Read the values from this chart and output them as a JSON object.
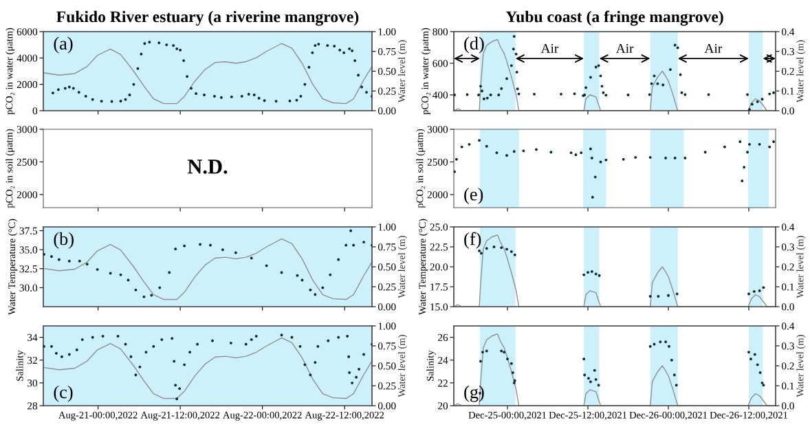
{
  "chart_data": [
    {
      "type": "scatter",
      "title": "Fukido River estuary (a riverine mangrove)",
      "ylabel": "pCO₂ in water (μatm)",
      "y2label": "Water level (m)",
      "annotations": [
        "(a)"
      ],
      "tick_labels": "y",
      "xlim": [
        "2022-08-20T16:00",
        "2022-08-22T16:00"
      ],
      "xticks": [
        {
          "value": "2022-08-21T00:00",
          "label": null
        },
        {
          "value": "2022-08-21T12:00",
          "label": null
        },
        {
          "value": "2022-08-22T00:00",
          "label": null
        },
        {
          "value": "2022-08-22T12:00",
          "label": null
        }
      ],
      "ylim": [
        0,
        6000
      ],
      "yticks": [
        0,
        2000,
        4000,
        6000
      ],
      "y2lim": [
        0,
        1
      ],
      "y2ticks": [
        {
          "value": 0,
          "label": "0.00"
        },
        0.25,
        {
          "value": 0.5,
          "label": "0.50"
        },
        0.75,
        {
          "value": 1,
          "label": "1.00"
        }
      ],
      "bands": [
        {
          "axis": "x",
          "from": "2022-08-20T16:00",
          "to": "2022-08-22T16:00",
          "color": "#ccf0fc"
        }
      ],
      "series": [
        {
          "type": "line",
          "axis": "y2",
          "color": "#8f8f8f",
          "x": [
            "2022-08-20T16:00",
            "2022-08-20T18:18",
            "2022-08-20T20:36",
            "2022-08-20T22:24",
            "2022-08-20T23:54",
            "2022-08-21T01:48",
            "2022-08-21T03:18",
            "2022-08-21T05:12",
            "2022-08-21T06:42",
            "2022-08-21T08:06",
            "2022-08-21T09:36",
            "2022-08-21T11:30",
            "2022-08-21T12:36",
            "2022-08-21T14:06",
            "2022-08-21T15:36",
            "2022-08-21T17:06",
            "2022-08-21T18:36",
            "2022-08-21T20:06",
            "2022-08-21T21:36",
            "2022-08-21T23:06",
            "2022-08-22T00:36",
            "2022-08-22T02:48",
            "2022-08-22T04:18",
            "2022-08-22T05:48",
            "2022-08-22T07:18",
            "2022-08-22T08:48",
            "2022-08-22T10:18",
            "2022-08-22T12:12",
            "2022-08-22T13:18",
            "2022-08-22T14:48",
            "2022-08-22T16:00"
          ],
          "values": [
            0.48,
            0.45,
            0.47,
            0.56,
            0.7,
            0.78,
            0.71,
            0.5,
            0.31,
            0.15,
            0.09,
            0.09,
            0.18,
            0.37,
            0.52,
            0.61,
            0.62,
            0.6,
            0.62,
            0.67,
            0.75,
            0.85,
            0.79,
            0.6,
            0.34,
            0.15,
            0.1,
            0.09,
            0.15,
            0.39,
            0.56
          ]
        },
        {
          "color": "#0d2b35",
          "marker": "circle",
          "x": [
            "2022-08-20T17:24",
            "2022-08-20T18:12",
            "2022-08-20T19:12",
            "2022-08-20T19:48",
            "2022-08-20T20:24",
            "2022-08-20T21:12",
            "2022-08-20T22:12",
            "2022-08-20T23:12",
            "2022-08-21T00:30",
            "2022-08-21T02:00",
            "2022-08-21T03:18",
            "2022-08-21T04:00",
            "2022-08-21T04:36",
            "2022-08-21T05:12",
            "2022-08-21T05:48",
            "2022-08-21T06:18",
            "2022-08-21T06:48",
            "2022-08-21T07:30",
            "2022-08-21T08:54",
            "2022-08-21T10:00",
            "2022-08-21T11:00",
            "2022-08-21T11:30",
            "2022-08-21T12:00",
            "2022-08-21T12:30",
            "2022-08-21T13:00",
            "2022-08-21T13:36",
            "2022-08-21T14:18",
            "2022-08-21T15:30",
            "2022-08-21T17:00",
            "2022-08-21T18:00",
            "2022-08-21T19:30",
            "2022-08-21T21:00",
            "2022-08-21T22:00",
            "2022-08-21T22:48",
            "2022-08-21T23:30",
            "2022-08-22T00:18",
            "2022-08-22T02:00",
            "2022-08-22T04:00",
            "2022-08-22T05:00",
            "2022-08-22T05:36",
            "2022-08-22T06:12",
            "2022-08-22T06:48",
            "2022-08-22T07:18",
            "2022-08-22T07:42",
            "2022-08-22T08:12",
            "2022-08-22T09:30",
            "2022-08-22T10:30",
            "2022-08-22T11:18",
            "2022-08-22T11:54",
            "2022-08-22T12:42",
            "2022-08-22T13:06",
            "2022-08-22T13:30",
            "2022-08-22T14:00",
            "2022-08-22T14:30",
            "2022-08-22T15:12",
            "2022-08-22T16:00"
          ],
          "values": [
            1350,
            1600,
            1700,
            1800,
            1700,
            1400,
            1100,
            850,
            720,
            700,
            730,
            850,
            1200,
            2000,
            3200,
            4300,
            5100,
            5200,
            5150,
            5000,
            4950,
            4700,
            4600,
            3800,
            2600,
            1700,
            1300,
            1200,
            1100,
            1000,
            1050,
            1100,
            1250,
            1200,
            950,
            770,
            720,
            740,
            800,
            1100,
            2000,
            3300,
            4400,
            4950,
            5050,
            4950,
            4900,
            4600,
            4400,
            4700,
            4550,
            3800,
            2700,
            1800,
            1400,
            1100
          ]
        }
      ]
    },
    {
      "type": "scatter",
      "title": "Yubu coast (a fringe mangrove)",
      "ylabel": "pCO₂ in water (μatm)",
      "y2label": "Water level (m)",
      "annotations": [
        "(d)",
        "Air",
        "Air",
        "Air"
      ],
      "tick_labels": "y",
      "xlim": [
        "2021-12-24T16:00",
        "2021-12-26T16:00"
      ],
      "xticks": [
        {
          "value": "2021-12-25T00:00",
          "label": null
        },
        {
          "value": "2021-12-25T12:00",
          "label": null
        },
        {
          "value": "2021-12-26T00:00",
          "label": null
        },
        {
          "value": "2021-12-26T12:00",
          "label": null
        }
      ],
      "ylim": [
        300,
        800
      ],
      "yticks": [
        400,
        600,
        800
      ],
      "y2lim": [
        0,
        0.4
      ],
      "y2ticks": [
        {
          "value": 0,
          "label": "0.0"
        },
        0.1,
        0.2,
        0.3,
        0.4
      ],
      "bands": [
        {
          "axis": "x",
          "from": "2021-12-24T19:54",
          "to": "2021-12-25T01:12",
          "color": "#ccf0fc"
        },
        {
          "axis": "x",
          "from": "2021-12-25T11:24",
          "to": "2021-12-25T13:42",
          "color": "#ccf0fc"
        },
        {
          "axis": "x",
          "from": "2021-12-25T21:18",
          "to": "2021-12-26T01:24",
          "color": "#ccf0fc"
        },
        {
          "axis": "x",
          "from": "2021-12-26T12:00",
          "to": "2021-12-26T14:06",
          "color": "#ccf0fc"
        }
      ],
      "series": [
        {
          "type": "line",
          "axis": "y2",
          "color": "#8f8f8f",
          "x": [
            "2021-12-24T16:00",
            "2021-12-24T16:36",
            "2021-12-24T17:12",
            "2021-12-24T19:48",
            "2021-12-24T20:00",
            "2021-12-24T20:24",
            "2021-12-24T20:54",
            "2021-12-24T21:42",
            "2021-12-24T22:30",
            "2021-12-24T23:00",
            "2021-12-24T23:30",
            "2021-12-24T23:54",
            "2021-12-25T00:36",
            "2021-12-25T01:18",
            "2021-12-25T01:42",
            "2021-12-25T11:24",
            "2021-12-25T11:42",
            "2021-12-25T12:18",
            "2021-12-25T13:12",
            "2021-12-25T13:54",
            "2021-12-25T21:18",
            "2021-12-25T21:36",
            "2021-12-25T22:24",
            "2021-12-25T23:06",
            "2021-12-25T23:30",
            "2021-12-26T00:00",
            "2021-12-26T00:36",
            "2021-12-26T01:24",
            "2021-12-26T11:54",
            "2021-12-26T12:24",
            "2021-12-26T13:00",
            "2021-12-26T13:36",
            "2021-12-26T14:18",
            "2021-12-26T14:42",
            "2021-12-26T16:00"
          ],
          "values": [
            0,
            0.01,
            0,
            0,
            0.12,
            0.29,
            0.33,
            0.35,
            0.36,
            0.32,
            0.29,
            0.25,
            0.17,
            0.08,
            0,
            0,
            0.06,
            0.08,
            0.07,
            0,
            0,
            0.12,
            0.17,
            0.2,
            0.18,
            0.15,
            0.09,
            0,
            0,
            0.04,
            0.06,
            0.05,
            0.02,
            0,
            0
          ]
        },
        {
          "color": "#0d2b35",
          "marker": "circle",
          "x": [
            "2021-12-24T16:06",
            "2021-12-24T18:00",
            "2021-12-24T19:42",
            "2021-12-24T20:00",
            "2021-12-24T20:12",
            "2021-12-24T20:30",
            "2021-12-24T21:00",
            "2021-12-24T21:30",
            "2021-12-24T22:42",
            "2021-12-24T23:06",
            "2021-12-24T23:54",
            "2021-12-25T00:36",
            "2021-12-25T00:54",
            "2021-12-25T01:00",
            "2021-12-25T01:18",
            "2021-12-25T01:24",
            "2021-12-25T01:30",
            "2021-12-25T01:42",
            "2021-12-25T04:00",
            "2021-12-25T08:00",
            "2021-12-25T10:00",
            "2021-12-25T11:18",
            "2021-12-25T11:30",
            "2021-12-25T11:42",
            "2021-12-25T12:24",
            "2021-12-25T13:12",
            "2021-12-25T13:36",
            "2021-12-25T13:54",
            "2021-12-25T14:06",
            "2021-12-25T14:18",
            "2021-12-25T14:42",
            "2021-12-25T18:00",
            "2021-12-25T21:12",
            "2021-12-25T21:30",
            "2021-12-25T21:54",
            "2021-12-25T22:24",
            "2021-12-25T23:12",
            "2021-12-26T00:18",
            "2021-12-26T01:00",
            "2021-12-26T01:24",
            "2021-12-26T01:48",
            "2021-12-26T02:00",
            "2021-12-26T02:30",
            "2021-12-26T06:00",
            "2021-12-26T11:48",
            "2021-12-26T12:06",
            "2021-12-26T12:30",
            "2021-12-26T13:18",
            "2021-12-26T14:00",
            "2021-12-26T15:06",
            "2021-12-26T15:42"
          ],
          "values": [
            400,
            402,
            400,
            455,
            425,
            375,
            380,
            400,
            400,
            440,
            503,
            585,
            690,
            770,
            658,
            544,
            438,
            406,
            405,
            405,
            407,
            395,
            400,
            446,
            511,
            576,
            585,
            520,
            455,
            414,
            398,
            400,
            402,
            471,
            520,
            471,
            463,
            560,
            715,
            698,
            528,
            414,
            402,
            402,
            402,
            308,
            341,
            357,
            373,
            406,
            414
          ]
        }
      ]
    },
    {
      "type": "scatter",
      "ylabel": "pCO₂ in soil (μatm)",
      "annotations": [
        "N.D."
      ],
      "tick_labels": "y",
      "xlim": [
        "2022-08-20T16:00",
        "2022-08-22T16:00"
      ],
      "xticks": [
        {
          "value": "2022-08-21T00:00",
          "label": null
        },
        {
          "value": "2022-08-21T12:00",
          "label": null
        },
        {
          "value": "2022-08-22T00:00",
          "label": null
        },
        {
          "value": "2022-08-22T12:00",
          "label": null
        }
      ],
      "ylim": [
        1800,
        3000
      ],
      "yticks": [
        2000,
        2500,
        3000
      ]
    },
    {
      "type": "scatter",
      "ylabel": "pCO₂ in soil (μatm)",
      "annotations": [
        "(e)"
      ],
      "tick_labels": "y",
      "xlim": [
        "2021-12-24T16:00",
        "2021-12-26T16:00"
      ],
      "xticks": [
        {
          "value": "2021-12-25T00:00",
          "label": null
        },
        {
          "value": "2021-12-25T12:00",
          "label": null
        },
        {
          "value": "2021-12-26T00:00",
          "label": null
        },
        {
          "value": "2021-12-26T12:00",
          "label": null
        }
      ],
      "ylim": [
        1800,
        3000
      ],
      "yticks": [
        2000,
        2500,
        3000
      ],
      "bands": [
        {
          "axis": "x",
          "from": "2021-12-24T19:54",
          "to": "2021-12-25T01:42",
          "color": "#ccf0fc"
        },
        {
          "axis": "x",
          "from": "2021-12-25T11:18",
          "to": "2021-12-25T14:42",
          "color": "#ccf0fc"
        },
        {
          "axis": "x",
          "from": "2021-12-25T21:18",
          "to": "2021-12-26T02:18",
          "color": "#ccf0fc"
        },
        {
          "axis": "x",
          "from": "2021-12-26T11:54",
          "to": "2021-12-26T15:00",
          "color": "#ccf0fc"
        }
      ],
      "series": [
        {
          "color": "#0d2b35",
          "marker": "circle",
          "x": [
            "2021-12-24T16:06",
            "2021-12-24T16:24",
            "2021-12-24T17:12",
            "2021-12-24T18:18",
            "2021-12-24T19:48",
            "2021-12-24T20:54",
            "2021-12-24T22:24",
            "2021-12-24T23:54",
            "2021-12-25T01:00",
            "2021-12-25T02:24",
            "2021-12-25T04:18",
            "2021-12-25T06:30",
            "2021-12-25T09:30",
            "2021-12-25T10:12",
            "2021-12-25T11:00",
            "2021-12-25T12:24",
            "2021-12-25T12:36",
            "2021-12-25T12:42",
            "2021-12-25T13:06",
            "2021-12-25T13:54",
            "2021-12-25T14:42",
            "2021-12-25T17:18",
            "2021-12-25T19:06",
            "2021-12-25T21:18",
            "2021-12-25T23:36",
            "2021-12-26T01:00",
            "2021-12-26T02:30",
            "2021-12-26T05:30",
            "2021-12-26T08:24",
            "2021-12-26T10:42",
            "2021-12-26T11:00",
            "2021-12-26T11:18",
            "2021-12-26T11:48",
            "2021-12-26T12:06",
            "2021-12-26T13:36",
            "2021-12-26T15:06",
            "2021-12-26T15:42"
          ],
          "values": [
            2350,
            2540,
            2730,
            2770,
            2830,
            2740,
            2640,
            2600,
            2660,
            2670,
            2690,
            2650,
            2640,
            2610,
            2640,
            2700,
            2560,
            1960,
            2270,
            2500,
            2530,
            2540,
            2570,
            2570,
            2560,
            2560,
            2560,
            2650,
            2730,
            2810,
            2210,
            2420,
            2650,
            2770,
            2770,
            2730,
            2810
          ]
        }
      ]
    },
    {
      "type": "scatter",
      "ylabel": "Water Temperature (°C)",
      "y2label": "Water level (m)",
      "annotations": [
        "(b)"
      ],
      "tick_labels": "y",
      "xlim": [
        "2022-08-20T16:00",
        "2022-08-22T16:00"
      ],
      "xticks": [
        {
          "value": "2022-08-21T00:00",
          "label": null
        },
        {
          "value": "2022-08-21T12:00",
          "label": null
        },
        {
          "value": "2022-08-22T00:00",
          "label": null
        },
        {
          "value": "2022-08-22T12:00",
          "label": null
        }
      ],
      "ylim": [
        27.5,
        38
      ],
      "yticks": [
        {
          "value": 30,
          "label": "30.0"
        },
        32.5,
        {
          "value": 35,
          "label": "35.0"
        },
        37.5
      ],
      "y2lim": [
        0,
        1
      ],
      "y2ticks": [
        {
          "value": 0,
          "label": "0.00"
        },
        0.25,
        {
          "value": 0.5,
          "label": "0.50"
        },
        0.75,
        {
          "value": 1,
          "label": "1.00"
        }
      ],
      "bands": [
        {
          "axis": "x",
          "from": "2022-08-20T16:00",
          "to": "2022-08-22T16:00",
          "color": "#ccf0fc"
        }
      ],
      "series": [
        {
          "type": "line",
          "axis": "y2",
          "color": "#8f8f8f",
          "x": [
            "2022-08-20T16:00",
            "2022-08-20T18:18",
            "2022-08-20T20:36",
            "2022-08-20T22:24",
            "2022-08-20T23:54",
            "2022-08-21T01:48",
            "2022-08-21T03:18",
            "2022-08-21T05:12",
            "2022-08-21T06:42",
            "2022-08-21T08:06",
            "2022-08-21T09:36",
            "2022-08-21T11:30",
            "2022-08-21T12:36",
            "2022-08-21T14:06",
            "2022-08-21T15:36",
            "2022-08-21T17:06",
            "2022-08-21T18:36",
            "2022-08-21T20:06",
            "2022-08-21T21:36",
            "2022-08-21T23:06",
            "2022-08-22T00:36",
            "2022-08-22T02:48",
            "2022-08-22T04:18",
            "2022-08-22T05:48",
            "2022-08-22T07:18",
            "2022-08-22T08:48",
            "2022-08-22T10:18",
            "2022-08-22T12:12",
            "2022-08-22T13:18",
            "2022-08-22T14:48",
            "2022-08-22T16:00"
          ],
          "values": [
            0.48,
            0.45,
            0.47,
            0.56,
            0.7,
            0.78,
            0.71,
            0.5,
            0.31,
            0.15,
            0.09,
            0.09,
            0.18,
            0.37,
            0.52,
            0.61,
            0.62,
            0.6,
            0.62,
            0.67,
            0.75,
            0.85,
            0.79,
            0.6,
            0.34,
            0.15,
            0.1,
            0.09,
            0.15,
            0.39,
            0.56
          ]
        },
        {
          "color": "#0d2b35",
          "marker": "circle",
          "x": [
            "2022-08-20T16:06",
            "2022-08-20T17:12",
            "2022-08-20T18:18",
            "2022-08-20T19:48",
            "2022-08-20T21:18",
            "2022-08-20T22:24",
            "2022-08-20T23:54",
            "2022-08-21T01:48",
            "2022-08-21T03:18",
            "2022-08-21T04:24",
            "2022-08-21T05:30",
            "2022-08-21T06:42",
            "2022-08-21T07:48",
            "2022-08-21T09:00",
            "2022-08-21T10:24",
            "2022-08-21T11:18",
            "2022-08-21T12:36",
            "2022-08-21T14:54",
            "2022-08-21T16:24",
            "2022-08-21T18:12",
            "2022-08-21T20:06",
            "2022-08-21T22:24",
            "2022-08-22T00:36",
            "2022-08-22T02:48",
            "2022-08-22T05:06",
            "2022-08-22T05:48",
            "2022-08-22T07:00",
            "2022-08-22T07:42",
            "2022-08-22T08:48",
            "2022-08-22T09:54",
            "2022-08-22T11:06",
            "2022-08-22T12:12",
            "2022-08-22T12:54",
            "2022-08-22T13:18",
            "2022-08-22T14:48",
            "2022-08-22T16:00"
          ],
          "values": [
            34.4,
            34.1,
            33.7,
            33.5,
            33.5,
            33.1,
            32.4,
            31.9,
            31.7,
            31.0,
            29.7,
            28.8,
            29.0,
            30.0,
            32.0,
            35.1,
            35.5,
            35.7,
            35.6,
            35.0,
            34.6,
            33.9,
            32.9,
            32.0,
            31.6,
            31.0,
            29.7,
            29.1,
            30.0,
            31.7,
            33.7,
            35.6,
            37.5,
            35.6,
            36.0,
            35.6
          ]
        }
      ]
    },
    {
      "type": "scatter",
      "ylabel": "Water Temperature (°C)",
      "y2label": "Water level (m)",
      "annotations": [
        "(f)"
      ],
      "tick_labels": "y",
      "xlim": [
        "2021-12-24T16:00",
        "2021-12-26T16:00"
      ],
      "xticks": [
        {
          "value": "2021-12-25T00:00",
          "label": null
        },
        {
          "value": "2021-12-25T12:00",
          "label": null
        },
        {
          "value": "2021-12-26T00:00",
          "label": null
        },
        {
          "value": "2021-12-26T12:00",
          "label": null
        }
      ],
      "ylim": [
        15,
        25
      ],
      "yticks": [
        {
          "value": 15,
          "label": "15.0"
        },
        17.5,
        {
          "value": 20,
          "label": "20.0"
        },
        22.5,
        {
          "value": 25,
          "label": "25.0"
        }
      ],
      "y2lim": [
        0,
        0.4
      ],
      "y2ticks": [
        {
          "value": 0,
          "label": "0.0"
        },
        0.1,
        0.2,
        0.3,
        0.4
      ],
      "bands": [
        {
          "axis": "x",
          "from": "2021-12-24T19:54",
          "to": "2021-12-25T01:12",
          "color": "#ccf0fc"
        },
        {
          "axis": "x",
          "from": "2021-12-25T11:24",
          "to": "2021-12-25T13:42",
          "color": "#ccf0fc"
        },
        {
          "axis": "x",
          "from": "2021-12-25T21:18",
          "to": "2021-12-26T01:24",
          "color": "#ccf0fc"
        },
        {
          "axis": "x",
          "from": "2021-12-26T12:00",
          "to": "2021-12-26T14:06",
          "color": "#ccf0fc"
        }
      ],
      "series": [
        {
          "type": "line",
          "axis": "y2",
          "color": "#8f8f8f",
          "x": [
            "2021-12-24T16:00",
            "2021-12-24T16:36",
            "2021-12-24T17:12",
            "2021-12-24T19:48",
            "2021-12-24T20:00",
            "2021-12-24T20:24",
            "2021-12-24T20:54",
            "2021-12-24T21:42",
            "2021-12-24T22:30",
            "2021-12-24T23:00",
            "2021-12-24T23:30",
            "2021-12-24T23:54",
            "2021-12-25T00:36",
            "2021-12-25T01:18",
            "2021-12-25T01:42",
            "2021-12-25T11:24",
            "2021-12-25T11:42",
            "2021-12-25T12:18",
            "2021-12-25T13:12",
            "2021-12-25T13:54",
            "2021-12-25T21:18",
            "2021-12-25T21:36",
            "2021-12-25T22:24",
            "2021-12-25T23:06",
            "2021-12-25T23:30",
            "2021-12-26T00:00",
            "2021-12-26T00:36",
            "2021-12-26T01:24",
            "2021-12-26T11:54",
            "2021-12-26T12:24",
            "2021-12-26T13:00",
            "2021-12-26T13:36",
            "2021-12-26T14:18",
            "2021-12-26T14:42",
            "2021-12-26T16:00"
          ],
          "values": [
            0,
            0.01,
            0,
            0,
            0.12,
            0.29,
            0.33,
            0.35,
            0.36,
            0.32,
            0.29,
            0.25,
            0.17,
            0.08,
            0,
            0,
            0.06,
            0.08,
            0.07,
            0,
            0,
            0.12,
            0.17,
            0.2,
            0.18,
            0.15,
            0.09,
            0,
            0,
            0.04,
            0.06,
            0.05,
            0.02,
            0,
            0
          ]
        },
        {
          "color": "#0d2b35",
          "marker": "circle",
          "x": [
            "2021-12-24T19:48",
            "2021-12-24T20:06",
            "2021-12-24T20:54",
            "2021-12-24T22:00",
            "2021-12-24T23:06",
            "2021-12-24T23:54",
            "2021-12-25T00:36",
            "2021-12-25T01:06",
            "2021-12-25T11:24",
            "2021-12-25T12:00",
            "2021-12-25T12:36",
            "2021-12-25T13:12",
            "2021-12-25T13:42",
            "2021-12-25T21:18",
            "2021-12-25T22:30",
            "2021-12-26T00:00",
            "2021-12-26T01:18",
            "2021-12-26T12:00",
            "2021-12-26T12:48",
            "2021-12-26T13:36",
            "2021-12-26T14:12"
          ],
          "values": [
            22.0,
            21.7,
            22.3,
            22.5,
            22.4,
            22.2,
            21.9,
            21.5,
            19.0,
            19.3,
            19.4,
            19.1,
            18.9,
            16.3,
            16.3,
            16.4,
            16.6,
            16.6,
            16.9,
            17.0,
            17.4
          ]
        }
      ]
    },
    {
      "type": "scatter",
      "ylabel": "Salinity",
      "y2label": "Water level (m)",
      "annotations": [
        "(c)"
      ],
      "xlim": [
        "2022-08-20T16:00",
        "2022-08-22T16:00"
      ],
      "xticks": [
        {
          "value": "2022-08-21T00:00",
          "label": "Aug-21-00:00,2022"
        },
        {
          "value": "2022-08-21T12:00",
          "label": "Aug-21-12:00,2022"
        },
        {
          "value": "2022-08-22T00:00",
          "label": "Aug-22-00:00,2022"
        },
        {
          "value": "2022-08-22T12:00",
          "label": "Aug-22-12:00,2022"
        }
      ],
      "ylim": [
        28,
        35
      ],
      "yticks": [
        28,
        30,
        32,
        34
      ],
      "y2lim": [
        0,
        1
      ],
      "y2ticks": [
        {
          "value": 0,
          "label": "0.00"
        },
        0.25,
        {
          "value": 0.5,
          "label": "0.50"
        },
        0.75,
        {
          "value": 1,
          "label": "1.00"
        }
      ],
      "bands": [
        {
          "axis": "x",
          "from": "2022-08-20T16:00",
          "to": "2022-08-22T16:00",
          "color": "#ccf0fc"
        }
      ],
      "series": [
        {
          "type": "line",
          "axis": "y2",
          "color": "#8f8f8f",
          "x": [
            "2022-08-20T16:00",
            "2022-08-20T18:18",
            "2022-08-20T20:36",
            "2022-08-20T22:24",
            "2022-08-20T23:54",
            "2022-08-21T01:48",
            "2022-08-21T03:18",
            "2022-08-21T05:12",
            "2022-08-21T06:42",
            "2022-08-21T08:06",
            "2022-08-21T09:36",
            "2022-08-21T11:30",
            "2022-08-21T12:36",
            "2022-08-21T14:06",
            "2022-08-21T15:36",
            "2022-08-21T17:06",
            "2022-08-21T18:36",
            "2022-08-21T20:06",
            "2022-08-21T21:36",
            "2022-08-21T23:06",
            "2022-08-22T00:36",
            "2022-08-22T02:48",
            "2022-08-22T04:18",
            "2022-08-22T05:48",
            "2022-08-22T07:18",
            "2022-08-22T08:48",
            "2022-08-22T10:18",
            "2022-08-22T12:12",
            "2022-08-22T13:18",
            "2022-08-22T14:48",
            "2022-08-22T16:00"
          ],
          "values": [
            0.48,
            0.45,
            0.47,
            0.56,
            0.7,
            0.78,
            0.71,
            0.5,
            0.31,
            0.15,
            0.09,
            0.09,
            0.18,
            0.37,
            0.52,
            0.61,
            0.62,
            0.6,
            0.62,
            0.67,
            0.75,
            0.85,
            0.79,
            0.6,
            0.34,
            0.15,
            0.1,
            0.09,
            0.15,
            0.39,
            0.56
          ]
        },
        {
          "color": "#0d2b35",
          "marker": "circle",
          "x": [
            "2022-08-20T16:06",
            "2022-08-20T17:12",
            "2022-08-20T17:54",
            "2022-08-20T18:42",
            "2022-08-20T19:48",
            "2022-08-20T20:54",
            "2022-08-20T21:42",
            "2022-08-20T23:12",
            "2022-08-21T00:42",
            "2022-08-21T02:54",
            "2022-08-21T04:00",
            "2022-08-21T04:48",
            "2022-08-21T05:30",
            "2022-08-21T06:06",
            "2022-08-21T07:00",
            "2022-08-21T08:06",
            "2022-08-21T09:18",
            "2022-08-21T10:48",
            "2022-08-21T11:06",
            "2022-08-21T11:18",
            "2022-08-21T11:30",
            "2022-08-21T11:54",
            "2022-08-21T12:36",
            "2022-08-21T13:24",
            "2022-08-21T14:30",
            "2022-08-21T16:42",
            "2022-08-21T19:24",
            "2022-08-21T21:36",
            "2022-08-21T22:24",
            "2022-08-21T23:06",
            "2022-08-22T02:48",
            "2022-08-22T04:18",
            "2022-08-22T05:30",
            "2022-08-22T06:12",
            "2022-08-22T07:00",
            "2022-08-22T07:42",
            "2022-08-22T08:06",
            "2022-08-22T09:36",
            "2022-08-22T11:06",
            "2022-08-22T12:24",
            "2022-08-22T12:36",
            "2022-08-22T12:42",
            "2022-08-22T13:06",
            "2022-08-22T13:42",
            "2022-08-22T14:06",
            "2022-08-22T14:48",
            "2022-08-22T16:00"
          ],
          "values": [
            33.2,
            33.2,
            32.6,
            32.3,
            32.5,
            32.9,
            33.8,
            34.0,
            34.1,
            34.1,
            33.4,
            32.3,
            30.7,
            31.4,
            32.7,
            33.2,
            33.8,
            33.9,
            31.9,
            29.8,
            28.6,
            29.5,
            31.6,
            32.7,
            33.4,
            33.7,
            33.5,
            33.4,
            33.8,
            34.1,
            34.2,
            34.0,
            33.2,
            31.6,
            30.7,
            31.8,
            33.2,
            33.7,
            34.0,
            34.1,
            32.3,
            30.9,
            30.0,
            30.5,
            31.2,
            32.5,
            33.4
          ]
        }
      ]
    },
    {
      "type": "scatter",
      "ylabel": "Salinity",
      "y2label": "Water level (m)",
      "annotations": [
        "(g)"
      ],
      "xlim": [
        "2021-12-24T16:00",
        "2021-12-26T16:00"
      ],
      "xticks": [
        {
          "value": "2021-12-25T00:00",
          "label": "Dec-25-00:00,2021"
        },
        {
          "value": "2021-12-25T12:00",
          "label": "Dec-25-12:00,2021"
        },
        {
          "value": "2021-12-26T00:00",
          "label": "Dec-26-00:00,2021"
        },
        {
          "value": "2021-12-26T12:00",
          "label": "Dec-26-12:00,2021"
        }
      ],
      "ylim": [
        20,
        27
      ],
      "yticks": [
        20,
        22,
        24,
        26
      ],
      "y2lim": [
        0,
        0.4
      ],
      "y2ticks": [
        {
          "value": 0,
          "label": "0.0"
        },
        0.1,
        0.2,
        0.3,
        0.4
      ],
      "bands": [
        {
          "axis": "x",
          "from": "2021-12-24T19:54",
          "to": "2021-12-25T01:12",
          "color": "#ccf0fc"
        },
        {
          "axis": "x",
          "from": "2021-12-25T11:24",
          "to": "2021-12-25T13:42",
          "color": "#ccf0fc"
        },
        {
          "axis": "x",
          "from": "2021-12-25T21:18",
          "to": "2021-12-26T01:24",
          "color": "#ccf0fc"
        },
        {
          "axis": "x",
          "from": "2021-12-26T12:00",
          "to": "2021-12-26T14:06",
          "color": "#ccf0fc"
        }
      ],
      "series": [
        {
          "type": "line",
          "axis": "y2",
          "color": "#8f8f8f",
          "x": [
            "2021-12-24T16:00",
            "2021-12-24T16:36",
            "2021-12-24T17:12",
            "2021-12-24T19:48",
            "2021-12-24T20:00",
            "2021-12-24T20:24",
            "2021-12-24T20:54",
            "2021-12-24T21:42",
            "2021-12-24T22:30",
            "2021-12-24T23:00",
            "2021-12-24T23:30",
            "2021-12-24T23:54",
            "2021-12-25T00:36",
            "2021-12-25T01:18",
            "2021-12-25T01:42",
            "2021-12-25T11:24",
            "2021-12-25T11:42",
            "2021-12-25T12:18",
            "2021-12-25T13:12",
            "2021-12-25T13:54",
            "2021-12-25T21:18",
            "2021-12-25T21:36",
            "2021-12-25T22:24",
            "2021-12-25T23:06",
            "2021-12-25T23:30",
            "2021-12-26T00:00",
            "2021-12-26T00:36",
            "2021-12-26T01:24",
            "2021-12-26T11:54",
            "2021-12-26T12:24",
            "2021-12-26T13:00",
            "2021-12-26T13:36",
            "2021-12-26T14:18",
            "2021-12-26T14:42",
            "2021-12-26T16:00"
          ],
          "values": [
            0,
            0.01,
            0,
            0,
            0.12,
            0.29,
            0.33,
            0.35,
            0.36,
            0.32,
            0.29,
            0.25,
            0.17,
            0.08,
            0,
            0,
            0.06,
            0.08,
            0.07,
            0,
            0,
            0.12,
            0.17,
            0.2,
            0.18,
            0.15,
            0.09,
            0,
            0,
            0.04,
            0.06,
            0.05,
            0.02,
            0,
            0
          ]
        },
        {
          "color": "#0d2b35",
          "marker": "circle",
          "x": [
            "2021-12-24T19:54",
            "2021-12-24T20:00",
            "2021-12-24T20:18",
            "2021-12-24T20:54",
            "2021-12-24T23:06",
            "2021-12-24T23:30",
            "2021-12-25T00:00",
            "2021-12-25T00:36",
            "2021-12-25T00:48",
            "2021-12-25T01:00",
            "2021-12-25T01:06",
            "2021-12-25T11:24",
            "2021-12-25T11:30",
            "2021-12-25T12:06",
            "2021-12-25T12:24",
            "2021-12-25T13:00",
            "2021-12-25T13:12",
            "2021-12-25T13:36",
            "2021-12-25T21:18",
            "2021-12-25T21:54",
            "2021-12-25T22:48",
            "2021-12-25T23:36",
            "2021-12-26T00:06",
            "2021-12-26T00:30",
            "2021-12-26T00:54",
            "2021-12-26T01:12",
            "2021-12-26T12:00",
            "2021-12-26T12:18",
            "2021-12-26T12:54",
            "2021-12-26T13:18",
            "2021-12-26T13:42",
            "2021-12-26T14:00",
            "2021-12-26T14:12"
          ],
          "values": [
            21.1,
            23.9,
            24.7,
            24.8,
            24.8,
            24.7,
            24.1,
            23.7,
            22.9,
            22.0,
            22.2,
            24.1,
            22.7,
            22.4,
            22.1,
            23.1,
            22.3,
            21.8,
            25.2,
            25.4,
            25.6,
            25.6,
            25.2,
            24.0,
            22.7,
            21.8,
            24.7,
            24.1,
            24.5,
            23.6,
            22.9,
            22.0,
            21.8
          ]
        }
      ]
    }
  ]
}
